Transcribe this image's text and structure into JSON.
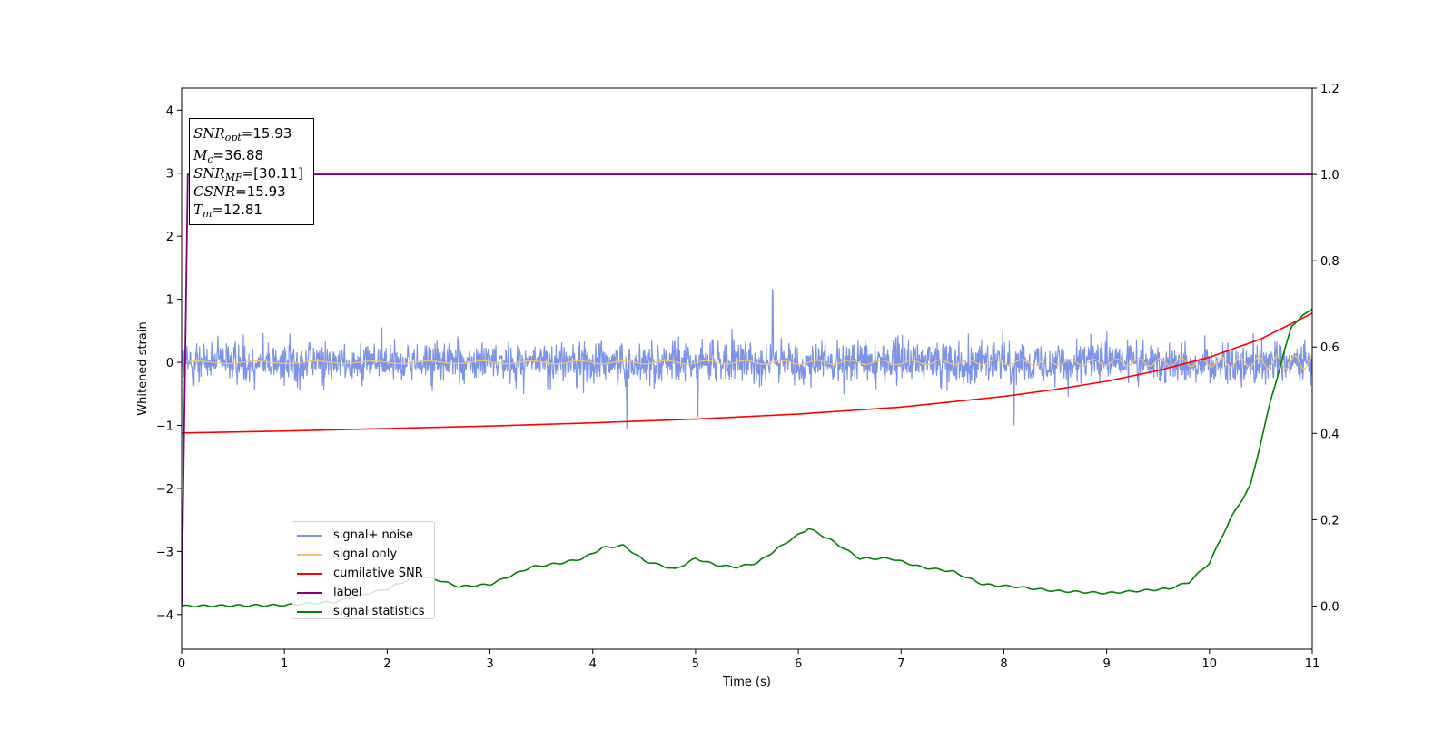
{
  "chart_data": {
    "type": "line",
    "title": "",
    "xlabel": "Time (s)",
    "ylabel": "Whitened strain",
    "y2label": "",
    "xlim": [
      0,
      11
    ],
    "ylim": [
      -4.55,
      4.35
    ],
    "y2lim": [
      -0.1,
      1.2
    ],
    "xticks": [
      "0",
      "1",
      "2",
      "3",
      "4",
      "5",
      "6",
      "7",
      "8",
      "9",
      "10",
      "11"
    ],
    "yticks": [
      "−4",
      "−3",
      "−2",
      "−1",
      "0",
      "1",
      "2",
      "3",
      "4"
    ],
    "y2ticks": [
      "0.0",
      "0.2",
      "0.4",
      "0.6",
      "0.8",
      "1.0",
      "1.2"
    ],
    "grid": false,
    "legend_position": "lower-left",
    "annotation": {
      "snr_opt": "=15.93",
      "mc": "=36.88",
      "snr_mf": "=[30.11]",
      "csnr": "=15.93",
      "tm": "=12.81"
    },
    "series": [
      {
        "name": "signal+ noise",
        "color": "#7b93e8",
        "axis": "left",
        "description_values": {
          "center": 0.0,
          "typical_amplitude": 0.5,
          "peaks": [
            {
              "x": 5.75,
              "y": 1.15
            },
            {
              "x": 4.33,
              "y": -1.05
            },
            {
              "x": 8.1,
              "y": -1.0
            }
          ]
        }
      },
      {
        "name": "signal only",
        "color": "#f5c36b",
        "axis": "left",
        "x": [
          0,
          2,
          4,
          6,
          8,
          9,
          10,
          10.5,
          11
        ],
        "amplitude": [
          0.02,
          0.02,
          0.025,
          0.03,
          0.04,
          0.05,
          0.07,
          0.09,
          0.11
        ]
      },
      {
        "name": "cumilative SNR",
        "color": "#ff0000",
        "axis": "left",
        "x": [
          0,
          1,
          2,
          3,
          4,
          5,
          6,
          7,
          8,
          8.5,
          9,
          9.5,
          10,
          10.5,
          11
        ],
        "values": [
          -1.12,
          -1.09,
          -1.05,
          -1.01,
          -0.96,
          -0.9,
          -0.82,
          -0.71,
          -0.54,
          -0.43,
          -0.3,
          -0.13,
          0.08,
          0.37,
          0.78
        ]
      },
      {
        "name": "label",
        "color": "#800080",
        "axis": "right",
        "x": [
          0,
          0.06,
          11
        ],
        "values": [
          0.0,
          1.0,
          1.0
        ]
      },
      {
        "name": "signal statistics",
        "color": "#008000",
        "axis": "right",
        "x": [
          0,
          1,
          1.5,
          2,
          2.3,
          2.5,
          2.7,
          3,
          3.2,
          3.4,
          3.7,
          3.9,
          4.1,
          4.3,
          4.5,
          4.8,
          5,
          5.2,
          5.4,
          5.6,
          5.9,
          6.1,
          6.3,
          6.6,
          6.9,
          7.2,
          7.5,
          7.8,
          8.1,
          8.5,
          9,
          9.3,
          9.6,
          9.8,
          10,
          10.2,
          10.4,
          10.6,
          10.8,
          11
        ],
        "values": [
          0.0,
          0.002,
          0.01,
          0.04,
          0.07,
          0.06,
          0.045,
          0.05,
          0.07,
          0.09,
          0.1,
          0.11,
          0.135,
          0.14,
          0.105,
          0.085,
          0.11,
          0.095,
          0.09,
          0.1,
          0.15,
          0.18,
          0.155,
          0.11,
          0.11,
          0.09,
          0.08,
          0.05,
          0.045,
          0.035,
          0.03,
          0.035,
          0.04,
          0.055,
          0.1,
          0.2,
          0.28,
          0.48,
          0.65,
          0.69
        ]
      }
    ]
  }
}
